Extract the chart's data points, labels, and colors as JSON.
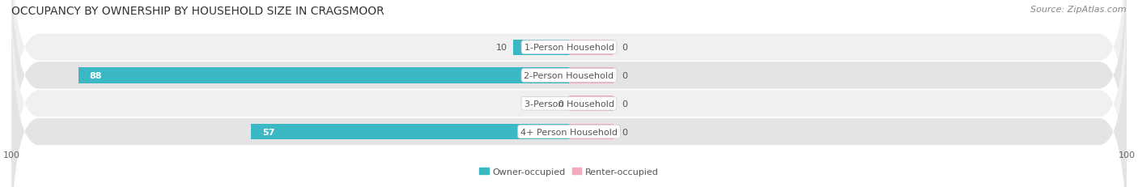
{
  "title": "OCCUPANCY BY OWNERSHIP BY HOUSEHOLD SIZE IN CRAGSMOOR",
  "source": "Source: ZipAtlas.com",
  "categories": [
    "1-Person Household",
    "2-Person Household",
    "3-Person Household",
    "4+ Person Household"
  ],
  "owner_values": [
    10,
    88,
    0,
    57
  ],
  "renter_values": [
    0,
    0,
    0,
    0
  ],
  "owner_color": "#3BB8C3",
  "renter_color": "#F4A8BC",
  "row_bg_light": "#F0F0F0",
  "row_bg_dark": "#E4E4E4",
  "axis_max": 100,
  "legend_owner": "Owner-occupied",
  "legend_renter": "Renter-occupied",
  "title_fontsize": 10,
  "label_fontsize": 8,
  "tick_fontsize": 8,
  "source_fontsize": 8,
  "bar_height": 0.55,
  "renter_min_display": 8
}
